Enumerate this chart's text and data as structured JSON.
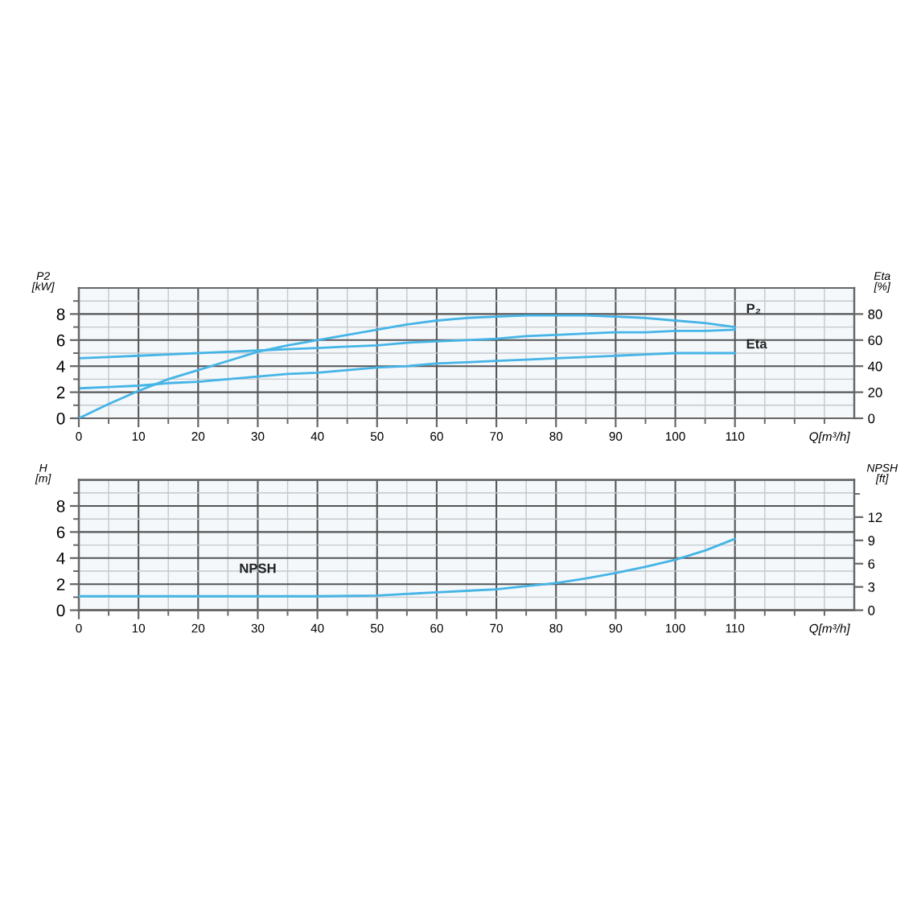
{
  "chart_data": [
    {
      "type": "line",
      "xlabel": "Q[m³/h]",
      "ylabel": "P2\n[kW]",
      "y2label": "Eta\n[%]",
      "x": [
        0,
        5,
        10,
        15,
        20,
        25,
        30,
        35,
        40,
        45,
        50,
        55,
        60,
        65,
        70,
        75,
        80,
        85,
        90,
        95,
        100,
        105,
        110
      ],
      "xlim": [
        0,
        130
      ],
      "xticks": [
        0,
        {
          "value": 5,
          "label": null
        },
        10,
        {
          "value": 15,
          "label": null
        },
        20,
        {
          "value": 25,
          "label": null
        },
        30,
        {
          "value": 35,
          "label": null
        },
        40,
        {
          "value": 45,
          "label": null
        },
        50,
        {
          "value": 55,
          "label": null
        },
        60,
        {
          "value": 65,
          "label": null
        },
        70,
        {
          "value": 75,
          "label": null
        },
        80,
        {
          "value": 85,
          "label": null
        },
        90,
        {
          "value": 95,
          "label": null
        },
        100,
        {
          "value": 105,
          "label": null
        },
        110,
        {
          "value": 115,
          "label": null
        },
        {
          "value": 120,
          "label": null
        },
        {
          "value": 125,
          "label": null
        }
      ],
      "ylim": [
        0,
        10
      ],
      "yticks": [
        0,
        {
          "value": 1,
          "label": null
        },
        2,
        {
          "value": 3,
          "label": null
        },
        4,
        {
          "value": 5,
          "label": null
        },
        6,
        {
          "value": 7,
          "label": null
        },
        8,
        {
          "value": 9,
          "label": null
        }
      ],
      "y2lim": [
        0,
        100
      ],
      "y2ticks": [
        0,
        20,
        40,
        60,
        80
      ],
      "grid": true,
      "series": [
        {
          "name": "Eta",
          "axis": "y2",
          "color": "#45b4e6",
          "values": [
            0,
            11,
            21,
            30,
            37,
            44,
            51,
            56,
            60,
            64,
            68,
            72,
            75,
            77,
            78,
            79,
            79,
            79,
            78,
            77,
            75,
            73,
            70
          ]
        },
        {
          "name": "P₂",
          "color": "#45b4e6",
          "values": [
            4.6,
            4.7,
            4.8,
            4.9,
            5.0,
            5.1,
            5.2,
            5.3,
            5.4,
            5.5,
            5.6,
            5.8,
            5.9,
            6.0,
            6.1,
            6.3,
            6.4,
            6.5,
            6.6,
            6.6,
            6.7,
            6.7,
            6.8
          ]
        },
        {
          "color": "#45b4e6",
          "values": [
            2.3,
            2.4,
            2.5,
            2.7,
            2.8,
            3.0,
            3.2,
            3.4,
            3.5,
            3.7,
            3.9,
            4.0,
            4.2,
            4.3,
            4.4,
            4.5,
            4.6,
            4.7,
            4.8,
            4.9,
            5.0,
            5.0,
            5.0
          ]
        }
      ]
    },
    {
      "type": "line",
      "xlabel": "Q[m³/h]",
      "ylabel": "H\n[m]",
      "y2label": "NPSH\n[ft]",
      "xlim": [
        0,
        130
      ],
      "xticks": [
        0,
        {
          "value": 5,
          "label": null
        },
        10,
        {
          "value": 15,
          "label": null
        },
        20,
        {
          "value": 25,
          "label": null
        },
        30,
        {
          "value": 35,
          "label": null
        },
        40,
        {
          "value": 45,
          "label": null
        },
        50,
        {
          "value": 55,
          "label": null
        },
        60,
        {
          "value": 65,
          "label": null
        },
        70,
        {
          "value": 75,
          "label": null
        },
        80,
        {
          "value": 85,
          "label": null
        },
        90,
        {
          "value": 95,
          "label": null
        },
        100,
        {
          "value": 105,
          "label": null
        },
        110,
        {
          "value": 115,
          "label": null
        },
        {
          "value": 120,
          "label": null
        },
        {
          "value": 125,
          "label": null
        }
      ],
      "ylim": [
        0,
        10
      ],
      "yticks": [
        0,
        {
          "value": 1,
          "label": null
        },
        2,
        {
          "value": 3,
          "label": null
        },
        4,
        {
          "value": 5,
          "label": null
        },
        6,
        {
          "value": 7,
          "label": null
        },
        8,
        {
          "value": 9,
          "label": null
        }
      ],
      "y2lim": [
        0,
        16.8
      ],
      "y2ticks": [
        0,
        3,
        6,
        9,
        12,
        {
          "value": 15,
          "label": null
        }
      ],
      "grid": true,
      "series": [
        {
          "name": "NPSH",
          "axis": "y2",
          "color": "#45b4e6",
          "x": [
            0,
            10,
            20,
            30,
            40,
            50,
            55,
            60,
            65,
            70,
            75,
            80,
            85,
            90,
            95,
            100,
            105,
            110
          ],
          "values": [
            1.8,
            1.8,
            1.8,
            1.8,
            1.8,
            1.9,
            2.1,
            2.3,
            2.5,
            2.7,
            3.1,
            3.5,
            4.1,
            4.8,
            5.6,
            6.5,
            7.7,
            9.2
          ]
        }
      ]
    }
  ]
}
